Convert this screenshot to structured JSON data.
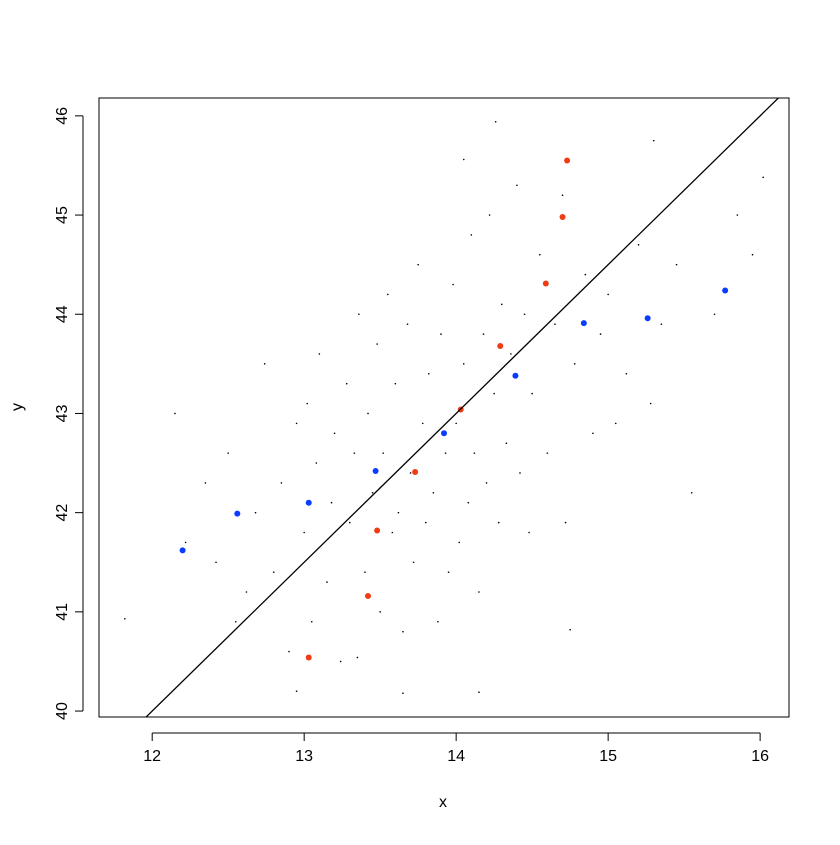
{
  "chart_data": {
    "type": "scatter",
    "xlabel": "x",
    "ylabel": "y",
    "xlim": [
      11.65,
      16.19
    ],
    "ylim": [
      39.94,
      46.18
    ],
    "xticks": [
      12,
      13,
      14,
      15,
      16
    ],
    "yticks": [
      40,
      41,
      42,
      43,
      44,
      45,
      46
    ],
    "line": {
      "intercept": 22,
      "slope": 1.5,
      "color": "#000000"
    },
    "series": [
      {
        "color": "#000000",
        "size": 0.8,
        "x": [
          11.82,
          12.15,
          12.22,
          12.35,
          12.42,
          12.5,
          12.55,
          12.62,
          12.68,
          12.74,
          12.8,
          12.85,
          12.9,
          12.95,
          13.0,
          13.02,
          13.05,
          13.08,
          13.1,
          13.15,
          13.18,
          13.2,
          13.24,
          13.28,
          13.3,
          13.33,
          13.36,
          13.4,
          13.42,
          13.45,
          13.48,
          13.5,
          13.52,
          13.55,
          13.58,
          13.6,
          13.62,
          13.65,
          13.68,
          13.7,
          13.72,
          13.75,
          13.78,
          13.8,
          13.82,
          13.85,
          13.88,
          13.9,
          13.93,
          13.95,
          13.98,
          14.0,
          14.02,
          14.05,
          14.08,
          14.1,
          14.12,
          14.15,
          14.18,
          14.2,
          14.22,
          14.25,
          14.28,
          14.3,
          14.33,
          14.36,
          14.4,
          14.42,
          14.45,
          14.48,
          14.5,
          14.55,
          14.6,
          14.65,
          14.7,
          14.72,
          14.78,
          14.85,
          14.9,
          14.95,
          15.0,
          15.05,
          15.12,
          15.2,
          15.28,
          15.35,
          15.45,
          15.55,
          15.7,
          15.85,
          15.95,
          16.02,
          14.26,
          14.05,
          13.65,
          14.75,
          12.95,
          13.35,
          15.3,
          14.15
        ],
        "y": [
          40.93,
          43.0,
          41.7,
          42.3,
          41.5,
          42.6,
          40.9,
          41.2,
          42.0,
          43.5,
          41.4,
          42.3,
          40.6,
          42.9,
          41.8,
          43.1,
          40.9,
          42.5,
          43.6,
          41.3,
          42.1,
          42.8,
          40.5,
          43.3,
          41.9,
          42.6,
          44.0,
          41.4,
          43.0,
          42.2,
          43.7,
          41.0,
          42.6,
          44.2,
          41.8,
          43.3,
          42.0,
          40.8,
          43.9,
          42.4,
          41.5,
          44.5,
          42.9,
          41.9,
          43.4,
          42.2,
          40.9,
          43.8,
          42.6,
          41.4,
          44.3,
          42.9,
          41.7,
          43.5,
          42.1,
          44.8,
          42.6,
          41.2,
          43.8,
          42.3,
          45.0,
          43.2,
          41.9,
          44.1,
          42.7,
          43.6,
          45.3,
          42.4,
          44.0,
          41.8,
          43.2,
          44.6,
          42.6,
          43.9,
          45.2,
          41.9,
          43.5,
          44.4,
          42.8,
          43.8,
          44.2,
          42.9,
          43.4,
          44.7,
          43.1,
          43.9,
          44.5,
          42.2,
          44.0,
          45.0,
          44.6,
          45.38,
          45.94,
          45.56,
          40.18,
          40.82,
          40.2,
          40.54,
          45.75,
          40.19
        ]
      },
      {
        "color": "#0a3cff",
        "size": 3,
        "x": [
          12.2,
          12.56,
          13.03,
          13.47,
          13.92,
          14.39,
          14.84,
          15.26,
          15.77
        ],
        "y": [
          41.62,
          41.99,
          42.1,
          42.42,
          42.8,
          43.38,
          43.91,
          43.96,
          44.24
        ]
      },
      {
        "color": "#f03c14",
        "size": 3,
        "x": [
          13.03,
          13.42,
          13.48,
          13.73,
          14.03,
          14.29,
          14.59,
          14.7,
          14.73
        ],
        "y": [
          40.54,
          41.16,
          41.82,
          42.41,
          43.04,
          43.68,
          44.31,
          44.98,
          45.55
        ]
      }
    ]
  }
}
